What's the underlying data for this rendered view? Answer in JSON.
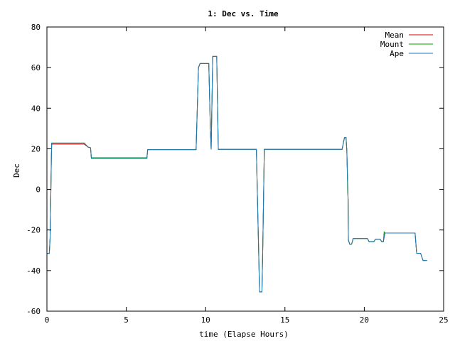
{
  "chart_data": {
    "type": "line",
    "title": "1: Dec vs. Time",
    "xlabel": "time (Elapse Hours)",
    "ylabel": "Dec",
    "xlim": [
      0,
      25
    ],
    "ylim": [
      -60,
      80
    ],
    "xticks": [
      0,
      5,
      10,
      15,
      20,
      25
    ],
    "yticks": [
      -60,
      -40,
      -20,
      0,
      20,
      40,
      60,
      80
    ],
    "grid": false,
    "legend_position": "top-right",
    "series": [
      {
        "name": "Mean",
        "color": "#d40000",
        "points": [
          [
            0.0,
            -31.5
          ],
          [
            0.15,
            -31.5
          ],
          [
            0.2,
            -24
          ],
          [
            0.25,
            0
          ],
          [
            0.28,
            16
          ],
          [
            0.3,
            22.3
          ],
          [
            2.35,
            22.3
          ],
          [
            2.6,
            20.8
          ],
          [
            2.75,
            20.5
          ],
          [
            2.8,
            15.3
          ],
          [
            6.3,
            15.3
          ],
          [
            6.35,
            19.6
          ],
          [
            9.4,
            19.6
          ],
          [
            9.55,
            60
          ],
          [
            9.65,
            62
          ],
          [
            10.2,
            62
          ],
          [
            10.3,
            30
          ],
          [
            10.35,
            19.7
          ],
          [
            10.45,
            65.5
          ],
          [
            10.7,
            65.5
          ],
          [
            10.8,
            19.7
          ],
          [
            13.2,
            19.7
          ],
          [
            13.4,
            -50.5
          ],
          [
            13.55,
            -50.5
          ],
          [
            13.6,
            -30
          ],
          [
            13.7,
            19.7
          ],
          [
            18.6,
            19.7
          ],
          [
            18.75,
            25.5
          ],
          [
            18.85,
            25.5
          ],
          [
            18.9,
            19
          ],
          [
            18.98,
            -5
          ],
          [
            19.0,
            -25
          ],
          [
            19.08,
            -27
          ],
          [
            19.2,
            -27
          ],
          [
            19.3,
            -24.2
          ],
          [
            20.2,
            -24.2
          ],
          [
            20.3,
            -25.8
          ],
          [
            20.6,
            -25.8
          ],
          [
            20.7,
            -24.6
          ],
          [
            21.0,
            -24.6
          ],
          [
            21.1,
            -25.8
          ],
          [
            21.2,
            -25.8
          ],
          [
            21.3,
            -21.5
          ],
          [
            23.2,
            -21.5
          ],
          [
            23.3,
            -31.5
          ],
          [
            23.55,
            -31.5
          ],
          [
            23.7,
            -35
          ],
          [
            23.95,
            -35
          ]
        ]
      },
      {
        "name": "Mount",
        "color": "#00a000",
        "points": [
          [
            0.0,
            -31.5
          ],
          [
            0.15,
            -31.5
          ],
          [
            0.2,
            -24
          ],
          [
            0.25,
            0
          ],
          [
            0.28,
            16
          ],
          [
            0.3,
            22.8
          ],
          [
            2.35,
            22.8
          ],
          [
            2.6,
            20.8
          ],
          [
            2.75,
            20.5
          ],
          [
            2.8,
            15.3
          ],
          [
            6.3,
            15.3
          ],
          [
            6.35,
            19.6
          ],
          [
            9.4,
            19.6
          ],
          [
            9.55,
            60
          ],
          [
            9.65,
            62
          ],
          [
            10.2,
            62
          ],
          [
            10.3,
            30
          ],
          [
            10.35,
            19.7
          ],
          [
            10.45,
            65.5
          ],
          [
            10.7,
            65.5
          ],
          [
            10.8,
            19.7
          ],
          [
            13.2,
            19.7
          ],
          [
            13.4,
            -50.5
          ],
          [
            13.55,
            -50.5
          ],
          [
            13.6,
            -30
          ],
          [
            13.7,
            19.7
          ],
          [
            18.6,
            19.7
          ],
          [
            18.75,
            25.5
          ],
          [
            18.85,
            25.5
          ],
          [
            18.9,
            19
          ],
          [
            18.95,
            0
          ],
          [
            18.98,
            -5
          ],
          [
            19.0,
            -25
          ],
          [
            19.08,
            -27
          ],
          [
            19.2,
            -27
          ],
          [
            19.3,
            -24.2
          ],
          [
            20.2,
            -24.2
          ],
          [
            20.3,
            -25.8
          ],
          [
            20.6,
            -25.8
          ],
          [
            20.7,
            -24.6
          ],
          [
            21.0,
            -24.6
          ],
          [
            21.1,
            -25.8
          ],
          [
            21.2,
            -25.8
          ],
          [
            21.25,
            -21
          ],
          [
            21.3,
            -21.5
          ],
          [
            23.2,
            -21.5
          ],
          [
            23.3,
            -31.5
          ],
          [
            23.55,
            -31.5
          ],
          [
            23.7,
            -35
          ],
          [
            23.95,
            -35
          ]
        ]
      },
      {
        "name": "Ape",
        "color": "#1f77c0",
        "points": [
          [
            0.0,
            -31.5
          ],
          [
            0.15,
            -31.5
          ],
          [
            0.2,
            -24
          ],
          [
            0.25,
            0
          ],
          [
            0.28,
            16
          ],
          [
            0.3,
            22.8
          ],
          [
            2.35,
            22.8
          ],
          [
            2.6,
            20.8
          ],
          [
            2.75,
            20.5
          ],
          [
            2.8,
            15.6
          ],
          [
            6.3,
            15.6
          ],
          [
            6.35,
            19.6
          ],
          [
            9.4,
            19.6
          ],
          [
            9.55,
            60
          ],
          [
            9.65,
            62
          ],
          [
            10.2,
            62
          ],
          [
            10.3,
            30
          ],
          [
            10.35,
            19.7
          ],
          [
            10.45,
            65.5
          ],
          [
            10.7,
            65.5
          ],
          [
            10.8,
            19.7
          ],
          [
            13.2,
            19.7
          ],
          [
            13.4,
            -50.5
          ],
          [
            13.55,
            -50.5
          ],
          [
            13.6,
            -30
          ],
          [
            13.7,
            19.7
          ],
          [
            18.6,
            19.7
          ],
          [
            18.75,
            25.5
          ],
          [
            18.85,
            25.5
          ],
          [
            18.9,
            19
          ],
          [
            18.98,
            -5
          ],
          [
            19.0,
            -25
          ],
          [
            19.08,
            -27
          ],
          [
            19.2,
            -27
          ],
          [
            19.3,
            -24.2
          ],
          [
            20.2,
            -24.2
          ],
          [
            20.3,
            -25.8
          ],
          [
            20.6,
            -25.8
          ],
          [
            20.7,
            -24.6
          ],
          [
            21.0,
            -24.6
          ],
          [
            21.1,
            -25.8
          ],
          [
            21.2,
            -25.8
          ],
          [
            21.3,
            -21.5
          ],
          [
            23.2,
            -21.5
          ],
          [
            23.3,
            -31.5
          ],
          [
            23.55,
            -31.5
          ],
          [
            23.7,
            -35
          ],
          [
            23.95,
            -35
          ]
        ]
      }
    ]
  }
}
